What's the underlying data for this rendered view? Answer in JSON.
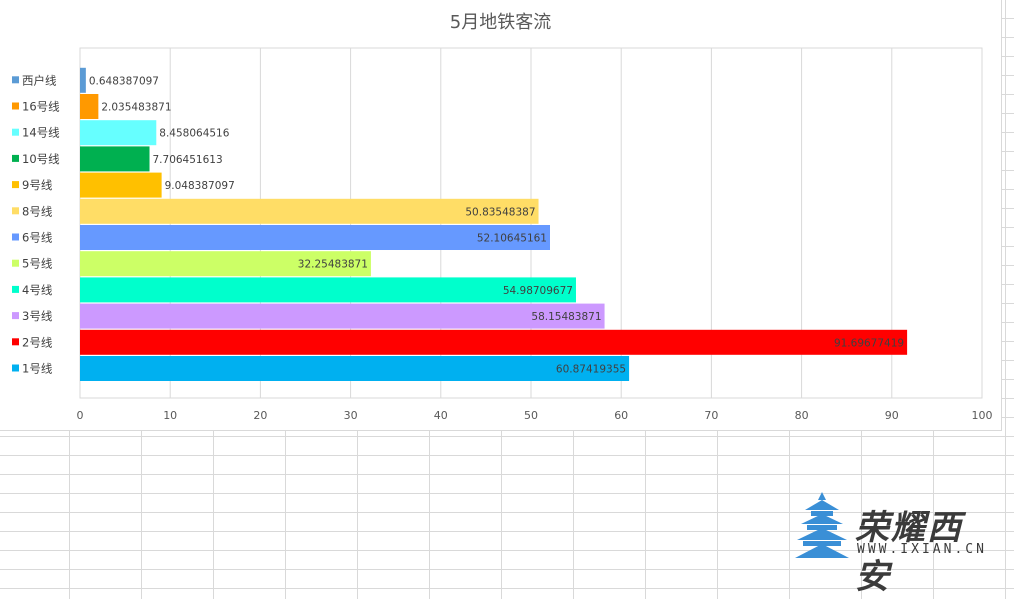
{
  "chart_data": {
    "type": "bar",
    "orientation": "horizontal",
    "title": "5月地铁客流",
    "categories": [
      "1号线",
      "2号线",
      "3号线",
      "4号线",
      "5号线",
      "6号线",
      "8号线",
      "9号线",
      "10号线",
      "14号线",
      "16号线",
      "西户线"
    ],
    "values": [
      60.87419355,
      91.69677419,
      58.15483871,
      54.98709677,
      32.25483871,
      52.10645161,
      50.83548387,
      9.048387097,
      7.706451613,
      8.458064516,
      2.035483871,
      0.648387097
    ],
    "colors": [
      "#00b0f0",
      "#ff0000",
      "#cc99ff",
      "#00ffcc",
      "#ccff66",
      "#6699ff",
      "#ffdd66",
      "#ffc000",
      "#00b050",
      "#66ffff",
      "#ff9900",
      "#5b9bd5"
    ],
    "xlim": [
      0,
      100
    ],
    "xticks": [
      0,
      10,
      20,
      30,
      40,
      50,
      60,
      70,
      80,
      90,
      100
    ],
    "grid": true,
    "legend": "left",
    "xlabel": "",
    "ylabel": ""
  },
  "watermark": {
    "text": "荣耀西安",
    "url": "WWW.IXIAN.CN"
  },
  "colors": {
    "watermark_blue": "#3a8fd6"
  }
}
